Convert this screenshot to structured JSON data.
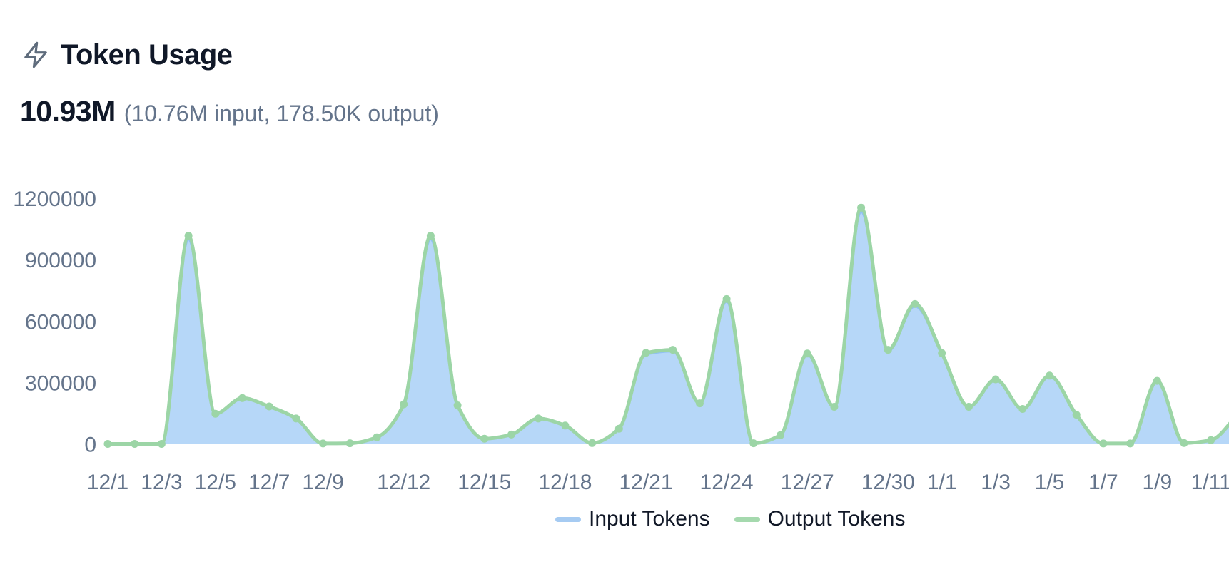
{
  "header": {
    "title": "Token Usage",
    "icon": "zap"
  },
  "summary": {
    "total": "10.93M",
    "breakdown": "(10.76M input, 178.50K output)"
  },
  "legend": {
    "items": [
      {
        "label": "Input Tokens",
        "color": "#a6cbf2"
      },
      {
        "label": "Output Tokens",
        "color": "#a5d9ae"
      }
    ]
  },
  "colors": {
    "input_fill": "#b6d7f8",
    "input_stroke": "#90c1f1",
    "output_stroke": "#9cd5a6",
    "axis_label": "#64748b",
    "title_text": "#101828",
    "muted_text": "#64748b",
    "icon": "#5f6c7c"
  },
  "chart_data": {
    "type": "area",
    "stacked": true,
    "smoothing": "monotone",
    "grid": false,
    "legend_position": "bottom",
    "title": "Token Usage",
    "xlabel": "",
    "ylabel": "",
    "ylim": [
      0,
      1200000
    ],
    "y_ticks": [
      1200000,
      900000,
      600000,
      300000,
      0
    ],
    "categories": [
      "12/1",
      "12/2",
      "12/3",
      "12/4",
      "12/5",
      "12/6",
      "12/7",
      "12/8",
      "12/9",
      "12/10",
      "12/11",
      "12/12",
      "12/13",
      "12/14",
      "12/15",
      "12/16",
      "12/17",
      "12/18",
      "12/19",
      "12/20",
      "12/21",
      "12/22",
      "12/23",
      "12/24",
      "12/25",
      "12/26",
      "12/27",
      "12/28",
      "12/29",
      "12/30",
      "12/31",
      "1/1",
      "1/2",
      "1/3",
      "1/4",
      "1/5",
      "1/6",
      "1/7",
      "1/8",
      "1/9",
      "1/10",
      "1/11"
    ],
    "x_tick_labels": [
      "12/1",
      "12/3",
      "12/5",
      "12/7",
      "12/9",
      "12/12",
      "12/15",
      "12/18",
      "12/21",
      "12/24",
      "12/27",
      "12/30",
      "1/1",
      "1/3",
      "1/5",
      "1/7",
      "1/9",
      "1/11"
    ],
    "series": [
      {
        "name": "Input Tokens",
        "values": [
          0,
          0,
          0,
          1000000,
          145000,
          220000,
          180000,
          122000,
          2000,
          3000,
          32000,
          190000,
          1000000,
          185000,
          25000,
          45000,
          122000,
          88000,
          4000,
          73000,
          437000,
          452000,
          195000,
          696000,
          3000,
          42000,
          434000,
          178000,
          1135000,
          452000,
          672000,
          436000,
          178000,
          310000,
          168000,
          328000,
          140000,
          2000,
          2000,
          303000,
          4000,
          18000
        ]
      },
      {
        "name": "Output Tokens",
        "values": [
          0,
          0,
          0,
          16600,
          2400,
          3700,
          3000,
          2000,
          100,
          100,
          500,
          3200,
          16600,
          3100,
          400,
          700,
          2000,
          1500,
          100,
          1200,
          7300,
          7500,
          3200,
          11600,
          100,
          700,
          7200,
          3000,
          18800,
          7500,
          11200,
          7200,
          3000,
          5100,
          2800,
          5400,
          2300,
          100,
          100,
          5000,
          100,
          300
        ]
      }
    ],
    "clipped_next_point": {
      "input": 140000,
      "output": 2300
    }
  }
}
